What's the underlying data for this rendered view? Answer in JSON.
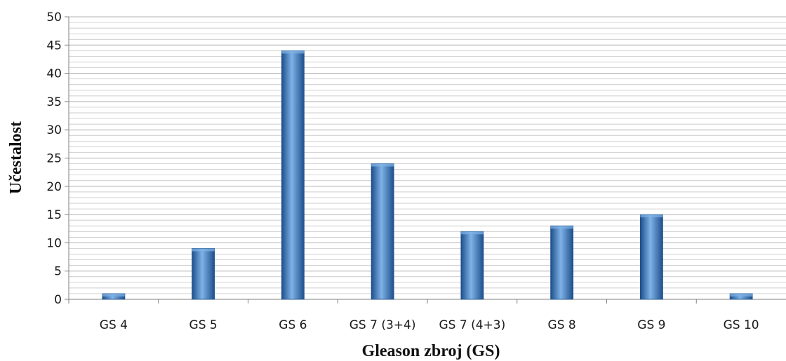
{
  "chart_data": {
    "type": "bar",
    "title": "",
    "xlabel": "Gleason zbroj (GS)",
    "ylabel": "Učestalost",
    "categories": [
      "GS 4",
      "GS 5",
      "GS 6",
      "GS 7 (3+4)",
      "GS 7 (4+3)",
      "GS 8",
      "GS 9",
      "GS 10"
    ],
    "values": [
      1,
      9,
      44,
      24,
      12,
      13,
      15,
      1
    ],
    "ylim": [
      0,
      50
    ],
    "yticks": [
      0,
      5,
      10,
      15,
      20,
      25,
      30,
      35,
      40,
      45,
      50
    ],
    "minor_grid_step": 1,
    "grid": true,
    "legend": "none",
    "colors": {
      "bar_light": "#7fb2e6",
      "bar_mid": "#3c7dcb",
      "bar_dark": "#1d4f8c",
      "grid": "#bdbdbd",
      "axis": "#808080"
    }
  }
}
